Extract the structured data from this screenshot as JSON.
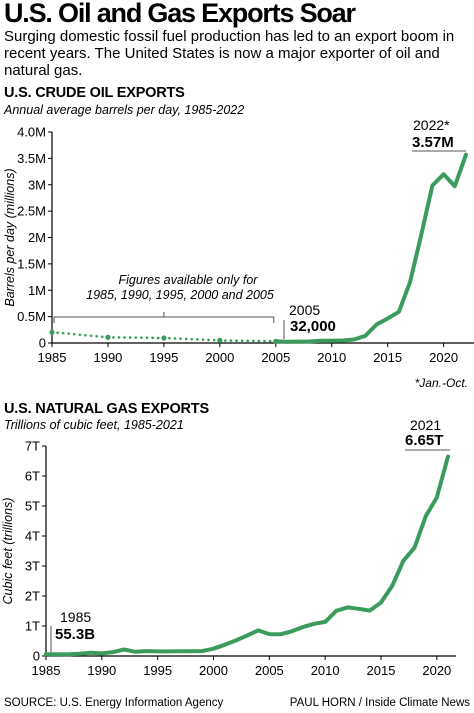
{
  "headline": "U.S. Oil and Gas Exports Soar",
  "dek": "Surging domestic fossil fuel production has led to an export boom in recent years. The United States is now a major exporter of oil and natural gas.",
  "colors": {
    "line": "#3a9b5c",
    "text": "#000000",
    "bracket": "#555555"
  },
  "chart_data": [
    {
      "type": "line",
      "title": "U.S. CRUDE OIL EXPORTS",
      "subtitle": "Annual average barrels per day, 1985-2022",
      "ylabel": "Barrels per day (millions)",
      "xlim": [
        1985,
        2022
      ],
      "ylim": [
        0,
        4
      ],
      "y_ticks": [
        0,
        0.5,
        1,
        1.5,
        2,
        2.5,
        3,
        3.5,
        4
      ],
      "y_tick_labels": [
        "0",
        "0.5M",
        "1M",
        "1.5M",
        "2M",
        "2.5M",
        "3M",
        "3.5M",
        "4.0M"
      ],
      "x_ticks": [
        1985,
        1990,
        1995,
        2000,
        2005,
        2010,
        2015,
        2020
      ],
      "x_tick_labels": [
        "1985",
        "1990",
        "1995",
        "2000",
        "2005",
        "2010",
        "2015",
        "2020"
      ],
      "series": [
        {
          "style": "dotted",
          "x": [
            1985,
            1990,
            1995,
            2000,
            2005
          ],
          "y": [
            0.204,
            0.109,
            0.095,
            0.05,
            0.032
          ]
        },
        {
          "style": "solid",
          "x": [
            2005,
            2006,
            2007,
            2008,
            2009,
            2010,
            2011,
            2012,
            2013,
            2014,
            2015,
            2016,
            2017,
            2018,
            2019,
            2020,
            2021,
            2022
          ],
          "y": [
            0.032,
            0.025,
            0.027,
            0.029,
            0.044,
            0.042,
            0.047,
            0.067,
            0.134,
            0.351,
            0.465,
            0.591,
            1.158,
            2.048,
            2.985,
            3.198,
            2.973,
            3.57
          ]
        }
      ],
      "annotations": {
        "bracket_text_1": "Figures available only for",
        "bracket_text_2": "1985, 1990, 1995, 2000 and 2005",
        "year_2005": "2005",
        "value_2005": "32,000",
        "year_2022": "2022*",
        "value_2022": "3.57M"
      },
      "footnote": "*Jan.-Oct."
    },
    {
      "type": "line",
      "title": "U.S. NATURAL GAS EXPORTS",
      "subtitle": "Trillions of cubic feet, 1985-2021",
      "ylabel": "Cubic feet (trillions)",
      "xlim": [
        1985,
        2021
      ],
      "ylim": [
        0,
        7
      ],
      "y_ticks": [
        0,
        1,
        2,
        3,
        4,
        5,
        6,
        7
      ],
      "y_tick_labels": [
        "0",
        "1T",
        "2T",
        "3T",
        "4T",
        "5T",
        "6T",
        "7T"
      ],
      "x_ticks": [
        1985,
        1990,
        1995,
        2000,
        2005,
        2010,
        2015,
        2020
      ],
      "x_tick_labels": [
        "1985",
        "1990",
        "1995",
        "2000",
        "2005",
        "2010",
        "2015",
        "2020"
      ],
      "series": [
        {
          "style": "solid",
          "x": [
            1985,
            1986,
            1987,
            1988,
            1989,
            1990,
            1991,
            1992,
            1993,
            1994,
            1995,
            1996,
            1997,
            1998,
            1999,
            2000,
            2001,
            2002,
            2003,
            2004,
            2005,
            2006,
            2007,
            2008,
            2009,
            2010,
            2011,
            2012,
            2013,
            2014,
            2015,
            2016,
            2017,
            2018,
            2019,
            2020,
            2021
          ],
          "y": [
            0.0553,
            0.061,
            0.054,
            0.074,
            0.107,
            0.086,
            0.129,
            0.216,
            0.14,
            0.162,
            0.154,
            0.153,
            0.157,
            0.159,
            0.163,
            0.244,
            0.373,
            0.516,
            0.68,
            0.854,
            0.729,
            0.724,
            0.822,
            0.963,
            1.072,
            1.137,
            1.506,
            1.619,
            1.572,
            1.514,
            1.784,
            2.335,
            3.171,
            3.611,
            4.656,
            5.284,
            6.65
          ]
        }
      ],
      "annotations": {
        "year_1985": "1985",
        "value_1985": "55.3B",
        "year_2021": "2021",
        "value_2021": "6.65T"
      }
    }
  ],
  "footer": {
    "source": "SOURCE: U.S. Energy Information Agency",
    "credit": "PAUL HORN / Inside Climate News"
  }
}
